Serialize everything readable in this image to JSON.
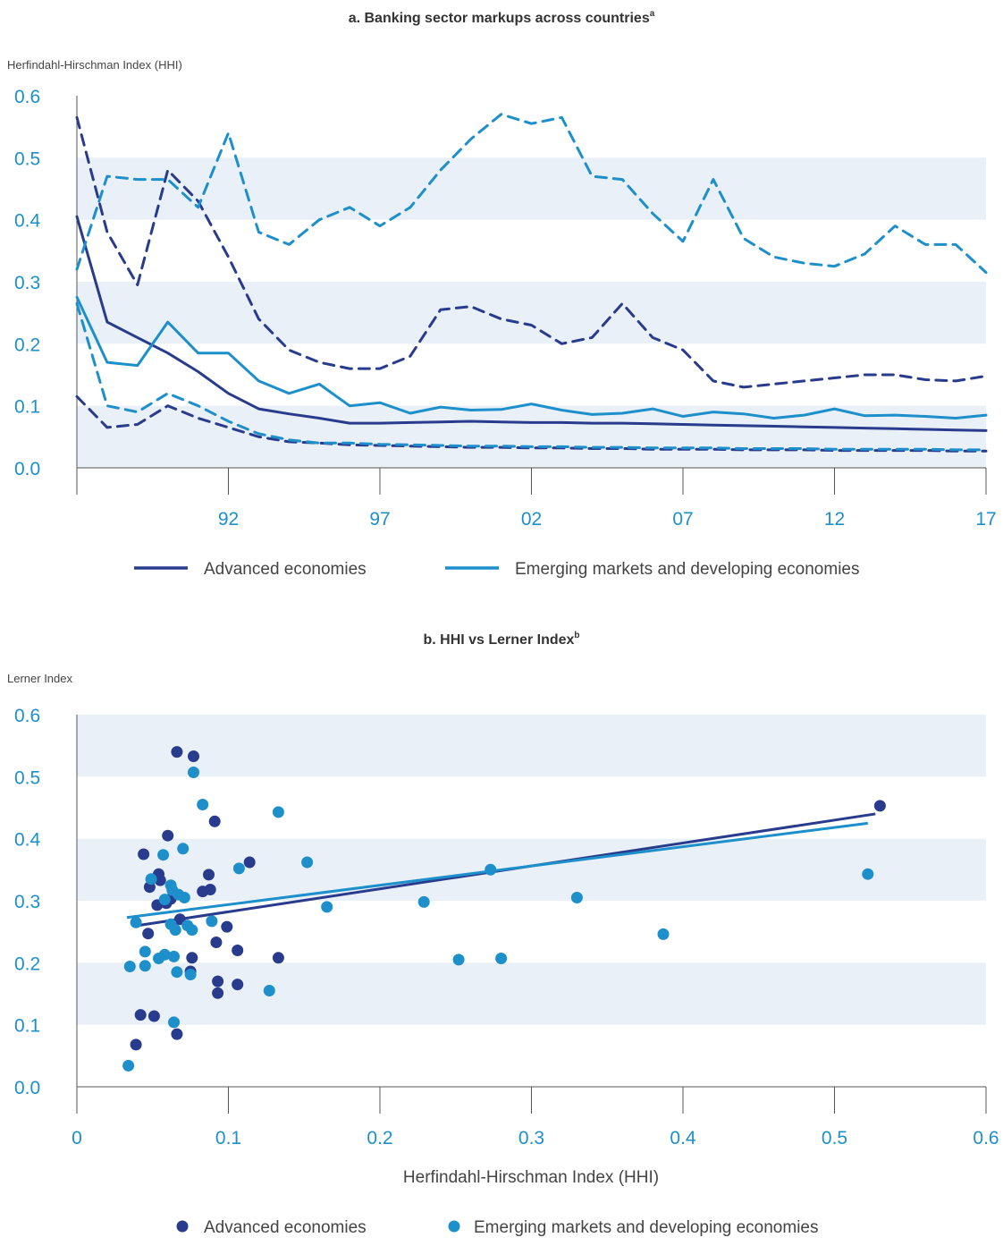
{
  "colors": {
    "advanced": "#283b8c",
    "emerging": "#1d8fcb",
    "band": "#eaf0f8",
    "tick_text": "#1d8fcb",
    "axis": "#555555"
  },
  "panel_a": {
    "title": "a. Banking sector markups across countries",
    "title_sup": "a",
    "ylabel": "Herfindahl-Hirschman Index (HHI)",
    "legend": {
      "advanced": "Advanced economies",
      "emerging": "Emerging markets and developing economies"
    }
  },
  "panel_b": {
    "title": "b. HHI vs Lerner Index",
    "title_sup": "b",
    "ylabel": "Lerner Index",
    "xlabel": "Herfindahl-Hirschman Index (HHI)",
    "legend": {
      "advanced": "Advanced economies",
      "emerging": "Emerging markets and developing economies"
    }
  },
  "chart_data": [
    {
      "type": "line",
      "title": "a. Banking sector markups across countries",
      "ylabel": "Herfindahl-Hirschman Index (HHI)",
      "xlabel": "",
      "x_ticks": [
        {
          "x": 1992,
          "label": "92"
        },
        {
          "x": 1997,
          "label": "97"
        },
        {
          "x": 2002,
          "label": "02"
        },
        {
          "x": 2007,
          "label": "07"
        },
        {
          "x": 2012,
          "label": "12"
        },
        {
          "x": 2017,
          "label": "17"
        }
      ],
      "xlim": [
        1987,
        2017
      ],
      "ylim": [
        0,
        0.6
      ],
      "y_ticks": [
        0.0,
        0.1,
        0.2,
        0.3,
        0.4,
        0.5,
        0.6
      ],
      "y_tick_labels": [
        "0.0",
        "0.1",
        "0.2",
        "0.3",
        "0.4",
        "0.5",
        "0.6"
      ],
      "grid": "alternating bands",
      "legend_position": "bottom",
      "series": [
        {
          "name": "Advanced economies",
          "group": "advanced",
          "style": "solid",
          "x": [
            1987,
            1988,
            1989,
            1990,
            1991,
            1992,
            1993,
            1994,
            1995,
            1996,
            1997,
            1998,
            1999,
            2000,
            2001,
            2002,
            2003,
            2004,
            2005,
            2006,
            2007,
            2008,
            2009,
            2010,
            2011,
            2012,
            2013,
            2014,
            2015,
            2016,
            2017
          ],
          "y": [
            0.405,
            0.235,
            0.21,
            0.185,
            0.155,
            0.12,
            0.095,
            0.087,
            0.08,
            0.072,
            0.072,
            0.073,
            0.074,
            0.075,
            0.074,
            0.073,
            0.073,
            0.072,
            0.072,
            0.071,
            0.07,
            0.069,
            0.068,
            0.067,
            0.066,
            0.065,
            0.064,
            0.063,
            0.062,
            0.061,
            0.06
          ]
        },
        {
          "name": "",
          "group": "advanced",
          "style": "dashed",
          "x": [
            1987,
            1988,
            1989,
            1990,
            1991,
            1992,
            1993,
            1994,
            1995,
            1996,
            1997,
            1998,
            1999,
            2000,
            2001,
            2002,
            2003,
            2004,
            2005,
            2006,
            2007,
            2008,
            2009,
            2010,
            2011,
            2012,
            2013,
            2014,
            2015,
            2016,
            2017
          ],
          "y": [
            0.565,
            0.38,
            0.295,
            0.48,
            0.43,
            0.34,
            0.24,
            0.19,
            0.17,
            0.16,
            0.16,
            0.18,
            0.255,
            0.26,
            0.24,
            0.23,
            0.2,
            0.21,
            0.265,
            0.21,
            0.19,
            0.14,
            0.13,
            0.135,
            0.14,
            0.145,
            0.15,
            0.15,
            0.142,
            0.14,
            0.148
          ]
        },
        {
          "name": "",
          "group": "advanced",
          "style": "dashed",
          "x": [
            1987,
            1988,
            1989,
            1990,
            1991,
            1992,
            1993,
            1994,
            1995,
            1996,
            1997,
            1998,
            1999,
            2000,
            2001,
            2002,
            2003,
            2004,
            2005,
            2006,
            2007,
            2008,
            2009,
            2010,
            2011,
            2012,
            2013,
            2014,
            2015,
            2016,
            2017
          ],
          "y": [
            0.115,
            0.065,
            0.07,
            0.1,
            0.08,
            0.065,
            0.05,
            0.042,
            0.04,
            0.037,
            0.036,
            0.035,
            0.034,
            0.033,
            0.033,
            0.032,
            0.032,
            0.031,
            0.031,
            0.03,
            0.03,
            0.03,
            0.029,
            0.029,
            0.029,
            0.028,
            0.028,
            0.028,
            0.028,
            0.027,
            0.027
          ]
        },
        {
          "name": "Emerging markets and developing economies",
          "group": "emerging",
          "style": "solid",
          "x": [
            1987,
            1988,
            1989,
            1990,
            1991,
            1992,
            1993,
            1994,
            1995,
            1996,
            1997,
            1998,
            1999,
            2000,
            2001,
            2002,
            2003,
            2004,
            2005,
            2006,
            2007,
            2008,
            2009,
            2010,
            2011,
            2012,
            2013,
            2014,
            2015,
            2016,
            2017
          ],
          "y": [
            0.275,
            0.17,
            0.165,
            0.235,
            0.185,
            0.185,
            0.14,
            0.12,
            0.135,
            0.1,
            0.105,
            0.088,
            0.098,
            0.093,
            0.094,
            0.103,
            0.093,
            0.086,
            0.088,
            0.095,
            0.083,
            0.09,
            0.087,
            0.08,
            0.085,
            0.095,
            0.084,
            0.085,
            0.083,
            0.08,
            0.085
          ]
        },
        {
          "name": "",
          "group": "emerging",
          "style": "dashed",
          "x": [
            1987,
            1988,
            1989,
            1990,
            1991,
            1992,
            1993,
            1994,
            1995,
            1996,
            1997,
            1998,
            1999,
            2000,
            2001,
            2002,
            2003,
            2004,
            2005,
            2006,
            2007,
            2008,
            2009,
            2010,
            2011,
            2012,
            2013,
            2014,
            2015,
            2016,
            2017
          ],
          "y": [
            0.32,
            0.47,
            0.465,
            0.465,
            0.42,
            0.54,
            0.38,
            0.36,
            0.4,
            0.42,
            0.39,
            0.42,
            0.48,
            0.53,
            0.57,
            0.555,
            0.565,
            0.47,
            0.465,
            0.41,
            0.365,
            0.465,
            0.37,
            0.34,
            0.33,
            0.325,
            0.345,
            0.39,
            0.36,
            0.36,
            0.315
          ]
        },
        {
          "name": "",
          "group": "emerging",
          "style": "dashed",
          "x": [
            1987,
            1988,
            1989,
            1990,
            1991,
            1992,
            1993,
            1994,
            1995,
            1996,
            1997,
            1998,
            1999,
            2000,
            2001,
            2002,
            2003,
            2004,
            2005,
            2006,
            2007,
            2008,
            2009,
            2010,
            2011,
            2012,
            2013,
            2014,
            2015,
            2016,
            2017
          ],
          "y": [
            0.265,
            0.1,
            0.09,
            0.12,
            0.1,
            0.075,
            0.055,
            0.045,
            0.04,
            0.04,
            0.038,
            0.037,
            0.036,
            0.035,
            0.035,
            0.034,
            0.034,
            0.033,
            0.033,
            0.032,
            0.032,
            0.032,
            0.031,
            0.031,
            0.031,
            0.03,
            0.03,
            0.03,
            0.03,
            0.029,
            0.029
          ]
        }
      ]
    },
    {
      "type": "scatter",
      "title": "b. HHI vs Lerner Index",
      "xlabel": "Herfindahl-Hirschman Index (HHI)",
      "ylabel": "Lerner Index",
      "xlim": [
        0,
        0.6
      ],
      "ylim": [
        0,
        0.6
      ],
      "x_ticks": [
        0,
        0.1,
        0.2,
        0.3,
        0.4,
        0.5,
        0.6
      ],
      "x_tick_labels": [
        "0",
        "0.1",
        "0.2",
        "0.3",
        "0.4",
        "0.5",
        "0.6"
      ],
      "y_ticks": [
        0.0,
        0.1,
        0.2,
        0.3,
        0.4,
        0.5,
        0.6
      ],
      "y_tick_labels": [
        "0.0",
        "0.1",
        "0.2",
        "0.3",
        "0.4",
        "0.5",
        "0.6"
      ],
      "grid": "alternating bands",
      "legend_position": "bottom",
      "series": [
        {
          "name": "Advanced economies",
          "group": "advanced",
          "points": [
            [
              0.066,
              0.54
            ],
            [
              0.077,
              0.533
            ],
            [
              0.091,
              0.428
            ],
            [
              0.044,
              0.375
            ],
            [
              0.06,
              0.405
            ],
            [
              0.114,
              0.362
            ],
            [
              0.054,
              0.343
            ],
            [
              0.087,
              0.342
            ],
            [
              0.048,
              0.322
            ],
            [
              0.055,
              0.333
            ],
            [
              0.083,
              0.315
            ],
            [
              0.088,
              0.318
            ],
            [
              0.062,
              0.303
            ],
            [
              0.059,
              0.296
            ],
            [
              0.053,
              0.293
            ],
            [
              0.068,
              0.27
            ],
            [
              0.099,
              0.258
            ],
            [
              0.047,
              0.247
            ],
            [
              0.092,
              0.233
            ],
            [
              0.106,
              0.22
            ],
            [
              0.076,
              0.208
            ],
            [
              0.133,
              0.208
            ],
            [
              0.075,
              0.186
            ],
            [
              0.093,
              0.17
            ],
            [
              0.106,
              0.165
            ],
            [
              0.093,
              0.151
            ],
            [
              0.042,
              0.116
            ],
            [
              0.051,
              0.114
            ],
            [
              0.066,
              0.085
            ],
            [
              0.039,
              0.068
            ],
            [
              0.53,
              0.453
            ]
          ]
        },
        {
          "name": "Emerging markets and developing economies",
          "group": "emerging",
          "points": [
            [
              0.077,
              0.507
            ],
            [
              0.083,
              0.455
            ],
            [
              0.133,
              0.443
            ],
            [
              0.07,
              0.384
            ],
            [
              0.057,
              0.374
            ],
            [
              0.107,
              0.352
            ],
            [
              0.152,
              0.362
            ],
            [
              0.049,
              0.335
            ],
            [
              0.062,
              0.325
            ],
            [
              0.063,
              0.317
            ],
            [
              0.067,
              0.31
            ],
            [
              0.071,
              0.305
            ],
            [
              0.058,
              0.302
            ],
            [
              0.165,
              0.29
            ],
            [
              0.229,
              0.298
            ],
            [
              0.273,
              0.35
            ],
            [
              0.33,
              0.305
            ],
            [
              0.522,
              0.343
            ],
            [
              0.039,
              0.265
            ],
            [
              0.062,
              0.262
            ],
            [
              0.073,
              0.26
            ],
            [
              0.089,
              0.267
            ],
            [
              0.065,
              0.253
            ],
            [
              0.076,
              0.253
            ],
            [
              0.045,
              0.218
            ],
            [
              0.058,
              0.213
            ],
            [
              0.054,
              0.207
            ],
            [
              0.064,
              0.21
            ],
            [
              0.035,
              0.194
            ],
            [
              0.045,
              0.195
            ],
            [
              0.066,
              0.185
            ],
            [
              0.075,
              0.181
            ],
            [
              0.127,
              0.155
            ],
            [
              0.252,
              0.205
            ],
            [
              0.28,
              0.207
            ],
            [
              0.387,
              0.246
            ],
            [
              0.064,
              0.104
            ],
            [
              0.034,
              0.034
            ]
          ]
        }
      ],
      "trendlines": [
        {
          "group": "advanced",
          "from": [
            0.04,
            0.26
          ],
          "to": [
            0.527,
            0.44
          ]
        },
        {
          "group": "emerging",
          "from": [
            0.033,
            0.273
          ],
          "to": [
            0.522,
            0.425
          ]
        }
      ]
    }
  ]
}
